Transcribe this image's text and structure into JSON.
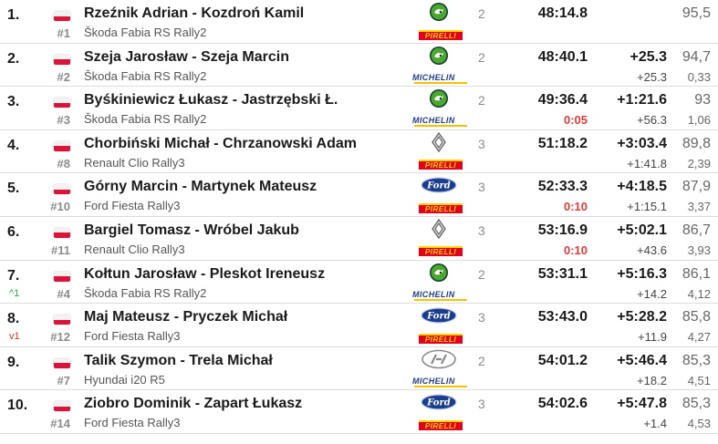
{
  "flag_colors": {
    "white": "#f2f2f2",
    "red": "#dc143c"
  },
  "rows": [
    {
      "pos": "1.",
      "change": "",
      "change_dir": "",
      "num": "#1",
      "crew": "Rzeźnik Adrian - Kozdroń Kamil",
      "car": "Škoda Fabia RS Rally2",
      "brand": "skoda",
      "tyre": "pirelli",
      "group": "2",
      "time": "48:14.8",
      "penalty": "",
      "diff": "",
      "prev": "",
      "speed": "95,5",
      "avg": ""
    },
    {
      "pos": "2.",
      "change": "",
      "change_dir": "",
      "num": "#2",
      "crew": "Szeja Jarosław - Szeja Marcin",
      "car": "Škoda Fabia RS Rally2",
      "brand": "skoda",
      "tyre": "michelin",
      "group": "2",
      "time": "48:40.1",
      "penalty": "",
      "diff": "+25.3",
      "prev": "+25.3",
      "speed": "94,7",
      "avg": "0,33"
    },
    {
      "pos": "3.",
      "change": "",
      "change_dir": "",
      "num": "#3",
      "crew": "Byśkiniewicz Łukasz - Jastrzębski Ł.",
      "car": "Škoda Fabia RS Rally2",
      "brand": "skoda",
      "tyre": "michelin",
      "group": "2",
      "time": "49:36.4",
      "penalty": "0:05",
      "diff": "+1:21.6",
      "prev": "+56.3",
      "speed": "93",
      "avg": "1,06"
    },
    {
      "pos": "4.",
      "change": "",
      "change_dir": "",
      "num": "#8",
      "crew": "Chorbiński Michał - Chrzanowski Adam",
      "car": "Renault Clio Rally3",
      "brand": "renault",
      "tyre": "pirelli",
      "group": "3",
      "time": "51:18.2",
      "penalty": "",
      "diff": "+3:03.4",
      "prev": "+1:41.8",
      "speed": "89,8",
      "avg": "2,39"
    },
    {
      "pos": "5.",
      "change": "",
      "change_dir": "",
      "num": "#10",
      "crew": "Górny Marcin - Martynek Mateusz",
      "car": "Ford Fiesta Rally3",
      "brand": "ford",
      "tyre": "pirelli",
      "group": "3",
      "time": "52:33.3",
      "penalty": "0:10",
      "diff": "+4:18.5",
      "prev": "+1:15.1",
      "speed": "87,9",
      "avg": "3,37"
    },
    {
      "pos": "6.",
      "change": "",
      "change_dir": "",
      "num": "#11",
      "crew": "Bargiel Tomasz - Wróbel Jakub",
      "car": "Renault Clio Rally3",
      "brand": "renault",
      "tyre": "pirelli",
      "group": "3",
      "time": "53:16.9",
      "penalty": "0:10",
      "diff": "+5:02.1",
      "prev": "+43.6",
      "speed": "86,7",
      "avg": "3,93"
    },
    {
      "pos": "7.",
      "change": "1",
      "change_dir": "up",
      "num": "#4",
      "crew": "Kołtun Jarosław - Pleskot Ireneusz",
      "car": "Škoda Fabia RS Rally2",
      "brand": "skoda",
      "tyre": "michelin",
      "group": "2",
      "time": "53:31.1",
      "penalty": "",
      "diff": "+5:16.3",
      "prev": "+14.2",
      "speed": "86,1",
      "avg": "4,12"
    },
    {
      "pos": "8.",
      "change": "1",
      "change_dir": "down",
      "num": "#12",
      "crew": "Maj Mateusz - Pryczek Michał",
      "car": "Ford Fiesta Rally3",
      "brand": "ford",
      "tyre": "pirelli",
      "group": "3",
      "time": "53:43.0",
      "penalty": "",
      "diff": "+5:28.2",
      "prev": "+11.9",
      "speed": "85,8",
      "avg": "4,27"
    },
    {
      "pos": "9.",
      "change": "",
      "change_dir": "",
      "num": "#7",
      "crew": "Talik Szymon - Trela Michał",
      "car": "Hyundai i20 R5",
      "brand": "hyundai",
      "tyre": "michelin",
      "group": "2",
      "time": "54:01.2",
      "penalty": "",
      "diff": "+5:46.4",
      "prev": "+18.2",
      "speed": "85,3",
      "avg": "4,51"
    },
    {
      "pos": "10.",
      "change": "",
      "change_dir": "",
      "num": "#14",
      "crew": "Ziobro Dominik - Zapart Łukasz",
      "car": "Ford Fiesta Rally3",
      "brand": "ford",
      "tyre": "pirelli",
      "group": "3",
      "time": "54:02.6",
      "penalty": "",
      "diff": "+5:47.8",
      "prev": "+1.4",
      "speed": "85,3",
      "avg": "4,53"
    }
  ],
  "tyre_labels": {
    "pirelli": "PIRELLI",
    "michelin": "MICHELIN"
  }
}
